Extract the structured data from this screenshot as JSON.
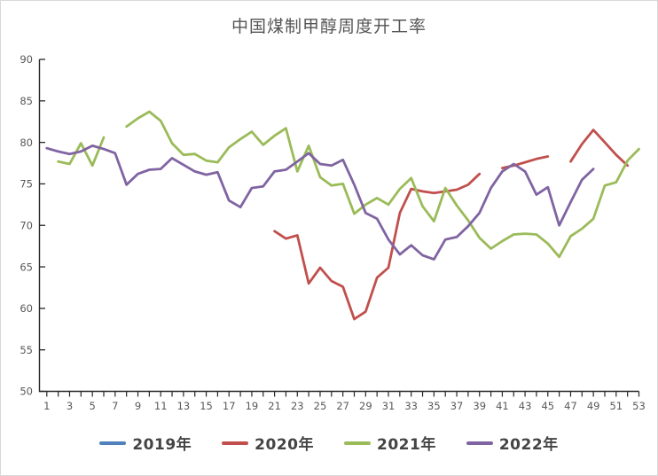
{
  "chart_data": {
    "type": "line",
    "title": "中国煤制甲醇周度开工率",
    "xlabel": "",
    "ylabel": "",
    "xlim": [
      1,
      53
    ],
    "ylim": [
      50,
      90
    ],
    "grid": false,
    "legend_position": "bottom",
    "y_ticks": [
      90,
      85,
      80,
      75,
      70,
      65,
      60,
      55,
      50
    ],
    "x_tick_labels": [
      "1",
      "3",
      "5",
      "7",
      "9",
      "11",
      "13",
      "15",
      "17",
      "19",
      "21",
      "23",
      "25",
      "27",
      "29",
      "31",
      "33",
      "35",
      "37",
      "39",
      "41",
      "43",
      "45",
      "47",
      "49",
      "51",
      "53"
    ],
    "weeks": [
      1,
      2,
      3,
      4,
      5,
      6,
      7,
      8,
      9,
      10,
      11,
      12,
      13,
      14,
      15,
      16,
      17,
      18,
      19,
      20,
      21,
      22,
      23,
      24,
      25,
      26,
      27,
      28,
      29,
      30,
      31,
      32,
      33,
      34,
      35,
      36,
      37,
      38,
      39,
      40,
      41,
      42,
      43,
      44,
      45,
      46,
      47,
      48,
      49,
      50,
      51,
      52,
      53
    ],
    "series": [
      {
        "name": "2019年",
        "color": "#4F81BD",
        "values": []
      },
      {
        "name": "2020年",
        "color": "#C0504D",
        "values": [
          null,
          null,
          null,
          null,
          null,
          null,
          null,
          null,
          null,
          null,
          null,
          null,
          null,
          null,
          null,
          null,
          null,
          null,
          null,
          null,
          69.3,
          68.4,
          68.8,
          63.0,
          64.9,
          63.3,
          62.6,
          58.7,
          59.6,
          63.7,
          64.9,
          71.5,
          74.4,
          74.1,
          73.9,
          74.1,
          74.3,
          74.9,
          76.2,
          null,
          76.9,
          77.2,
          77.6,
          78.0,
          78.3,
          null,
          77.7,
          79.8,
          81.5,
          80.0,
          78.5,
          77.2,
          null
        ]
      },
      {
        "name": "2021年",
        "color": "#9BBB59",
        "values": [
          null,
          77.7,
          77.4,
          79.9,
          77.2,
          80.6,
          null,
          81.9,
          82.9,
          83.7,
          82.6,
          79.9,
          78.5,
          78.6,
          77.8,
          77.6,
          79.4,
          80.4,
          81.3,
          79.7,
          80.8,
          81.7,
          76.5,
          79.6,
          75.8,
          74.8,
          75.0,
          71.4,
          72.5,
          73.3,
          72.5,
          74.4,
          75.7,
          72.3,
          70.5,
          74.5,
          72.4,
          70.6,
          68.5,
          67.2,
          68.1,
          68.9,
          69.0,
          68.9,
          67.8,
          66.2,
          68.7,
          69.6,
          70.8,
          74.8,
          75.2,
          77.8,
          79.2
        ]
      },
      {
        "name": "2022年",
        "color": "#8064A2",
        "values": [
          79.3,
          78.9,
          78.6,
          78.9,
          79.6,
          79.2,
          78.7,
          74.9,
          76.2,
          76.7,
          76.8,
          78.1,
          77.3,
          76.5,
          76.1,
          76.4,
          73.0,
          72.2,
          74.5,
          74.7,
          76.5,
          76.7,
          77.7,
          78.7,
          77.4,
          77.2,
          77.9,
          74.9,
          71.5,
          70.8,
          68.3,
          66.5,
          67.6,
          66.4,
          65.9,
          68.3,
          68.6,
          69.9,
          71.5,
          74.5,
          76.5,
          77.4,
          76.5,
          73.7,
          74.6,
          70.0,
          72.8,
          75.5,
          76.8,
          null,
          null,
          null,
          null
        ]
      }
    ],
    "style": {
      "axis_color": "#262626",
      "tick_label_color": "#595959",
      "title_color": "#555555",
      "legend_text_color": "#444444",
      "background": "#ffffff",
      "border_color": "#d9d9d9"
    }
  }
}
